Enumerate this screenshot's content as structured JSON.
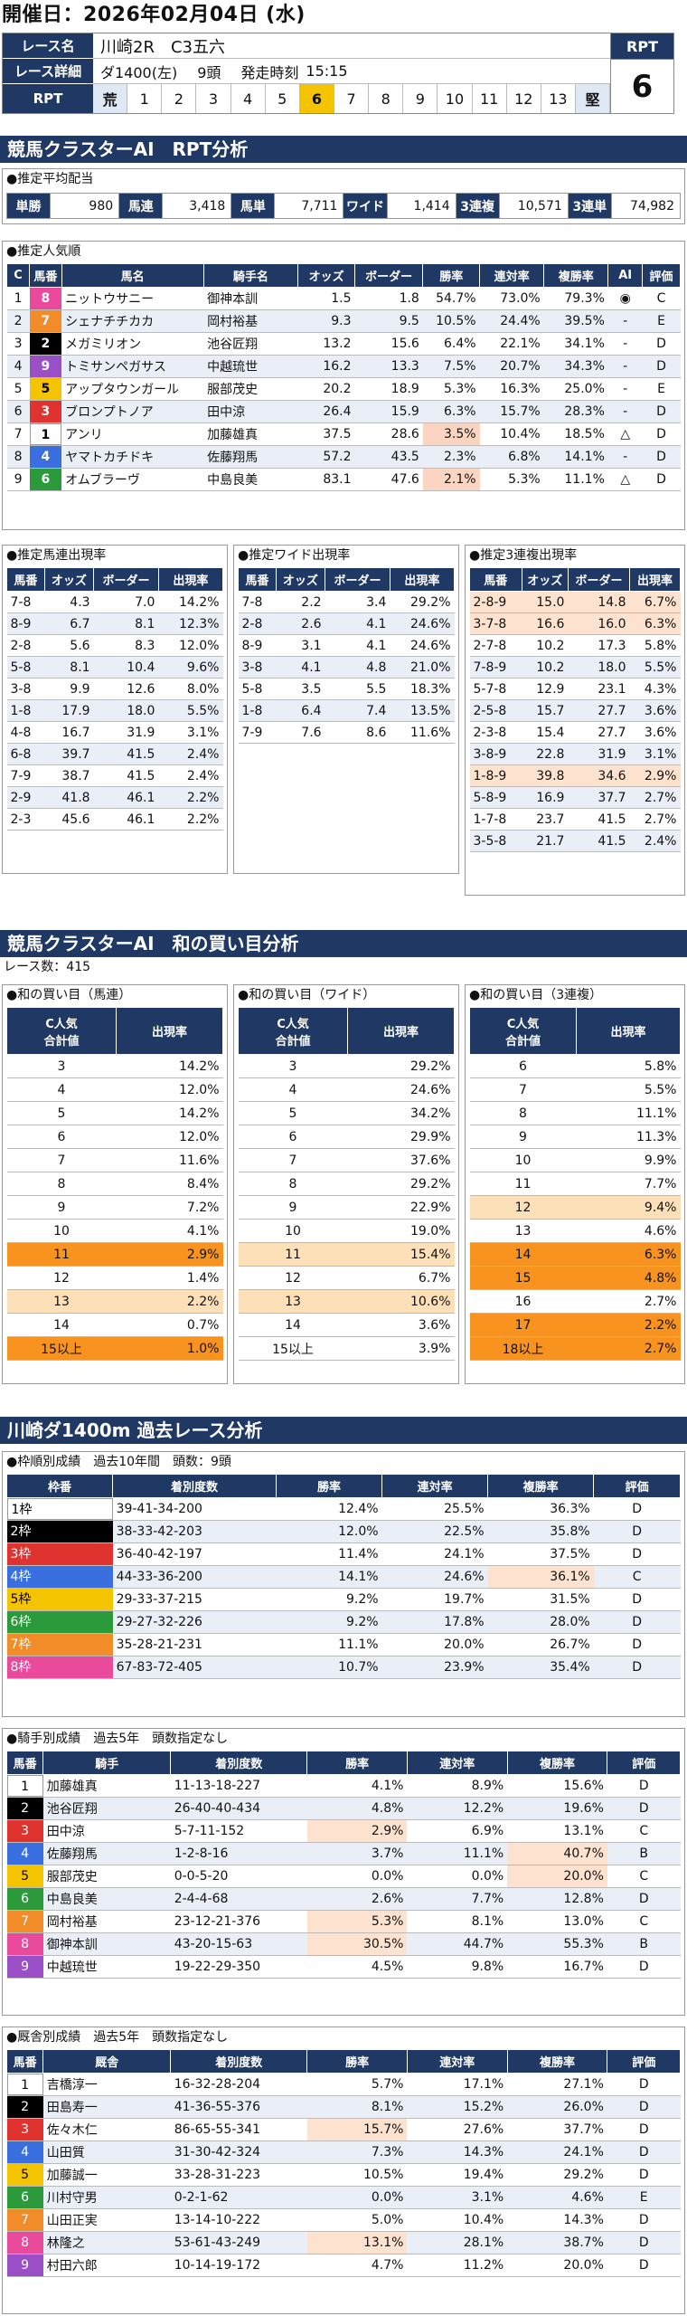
{
  "header": {
    "date_label": "開催日：",
    "date": "2026年02月04日 (水)"
  },
  "race": {
    "name_label": "レース名",
    "name": "川崎2R　C3五六",
    "detail_label": "レース詳細",
    "course": "ダ1400(左)",
    "heads": "9頭",
    "start_label": "発走時刻",
    "start": "15:15",
    "rpt_label": "RPT",
    "rpt_value": "6",
    "scale_start": "荒",
    "scale": [
      "1",
      "2",
      "3",
      "4",
      "5",
      "6",
      "7",
      "8",
      "9",
      "10",
      "11",
      "12",
      "13"
    ],
    "scale_end": "堅",
    "scale_selected": "6"
  },
  "s1": {
    "title": "競馬クラスターAI　RPT分析"
  },
  "payout": {
    "caption": "●推定平均配当",
    "items": [
      {
        "label": "単勝",
        "value": "980"
      },
      {
        "label": "馬連",
        "value": "3,418"
      },
      {
        "label": "馬単",
        "value": "7,711"
      },
      {
        "label": "ワイド",
        "value": "1,414"
      },
      {
        "label": "3連複",
        "value": "10,571"
      },
      {
        "label": "3連単",
        "value": "74,982"
      }
    ]
  },
  "pop": {
    "caption": "●推定人気順",
    "headers": [
      "C",
      "馬番",
      "馬名",
      "騎手名",
      "オッズ",
      "ボーダー",
      "勝率",
      "連対率",
      "複勝率",
      "AI",
      "評価"
    ],
    "rows": [
      [
        "1",
        "8",
        "ニットウサニー",
        "御神本訓",
        "1.5",
        "1.8",
        "54.7%",
        "73.0%",
        "79.3%",
        "◉",
        "C"
      ],
      [
        "2",
        "7",
        "シェナチチカカ",
        "岡村裕基",
        "9.3",
        "9.5",
        "10.5%",
        "24.4%",
        "39.5%",
        "-",
        "E"
      ],
      [
        "3",
        "2",
        "メガミリオン",
        "池谷匠翔",
        "13.2",
        "15.6",
        "6.4%",
        "22.1%",
        "34.1%",
        "-",
        "D"
      ],
      [
        "4",
        "9",
        "トミサンペガサス",
        "中越琉世",
        "16.2",
        "13.3",
        "7.5%",
        "20.7%",
        "34.3%",
        "-",
        "D"
      ],
      [
        "5",
        "5",
        "アップタウンガール",
        "服部茂史",
        "20.2",
        "18.9",
        "5.3%",
        "16.3%",
        "25.0%",
        "-",
        "E"
      ],
      [
        "6",
        "3",
        "ブロンプトノア",
        "田中涼",
        "26.4",
        "15.9",
        "6.3%",
        "15.7%",
        "28.3%",
        "-",
        "D"
      ],
      [
        "7",
        "1",
        "アンリ",
        "加藤雄真",
        "37.5",
        "28.6",
        "3.5%",
        "10.4%",
        "18.5%",
        "△",
        "D"
      ],
      [
        "8",
        "4",
        "ヤマトカチドキ",
        "佐藤翔馬",
        "57.2",
        "43.5",
        "2.3%",
        "6.8%",
        "14.1%",
        "-",
        "D"
      ],
      [
        "9",
        "6",
        "オムブラーヴ",
        "中島良美",
        "83.1",
        "47.6",
        "2.1%",
        "5.3%",
        "11.1%",
        "△",
        "D"
      ]
    ]
  },
  "umaren": {
    "caption": "●推定馬連出現率",
    "headers": [
      "馬番",
      "オッズ",
      "ボーダー",
      "出現率"
    ],
    "rows": [
      [
        "7-8",
        "4.3",
        "7.0",
        "14.2%"
      ],
      [
        "8-9",
        "6.7",
        "8.1",
        "12.3%"
      ],
      [
        "2-8",
        "5.6",
        "8.3",
        "12.0%"
      ],
      [
        "5-8",
        "8.1",
        "10.4",
        "9.6%"
      ],
      [
        "3-8",
        "9.9",
        "12.6",
        "8.0%"
      ],
      [
        "1-8",
        "17.9",
        "18.0",
        "5.5%"
      ],
      [
        "4-8",
        "16.7",
        "31.9",
        "3.1%"
      ],
      [
        "6-8",
        "39.7",
        "41.5",
        "2.4%"
      ],
      [
        "7-9",
        "38.7",
        "41.5",
        "2.4%"
      ],
      [
        "2-9",
        "41.8",
        "46.1",
        "2.2%"
      ],
      [
        "2-3",
        "45.6",
        "46.1",
        "2.2%"
      ]
    ]
  },
  "wide": {
    "caption": "●推定ワイド出現率",
    "headers": [
      "馬番",
      "オッズ",
      "ボーダー",
      "出現率"
    ],
    "rows": [
      [
        "7-8",
        "2.2",
        "3.4",
        "29.2%"
      ],
      [
        "2-8",
        "2.6",
        "4.1",
        "24.6%"
      ],
      [
        "8-9",
        "3.1",
        "4.1",
        "24.6%"
      ],
      [
        "3-8",
        "4.1",
        "4.8",
        "21.0%"
      ],
      [
        "5-8",
        "3.5",
        "5.5",
        "18.3%"
      ],
      [
        "1-8",
        "6.4",
        "7.4",
        "13.5%"
      ],
      [
        "7-9",
        "7.6",
        "8.6",
        "11.6%"
      ]
    ]
  },
  "sanpuku": {
    "caption": "●推定3連複出現率",
    "headers": [
      "馬番",
      "オッズ",
      "ボーダー",
      "出現率"
    ],
    "rows": [
      [
        "2-8-9",
        "15.0",
        "14.8",
        "6.7%"
      ],
      [
        "3-7-8",
        "16.6",
        "16.0",
        "6.3%"
      ],
      [
        "2-7-8",
        "10.2",
        "17.3",
        "5.8%"
      ],
      [
        "7-8-9",
        "10.2",
        "18.0",
        "5.5%"
      ],
      [
        "5-7-8",
        "12.9",
        "23.1",
        "4.3%"
      ],
      [
        "2-5-8",
        "15.7",
        "27.7",
        "3.6%"
      ],
      [
        "2-3-8",
        "15.4",
        "27.7",
        "3.6%"
      ],
      [
        "3-8-9",
        "22.8",
        "31.9",
        "3.1%"
      ],
      [
        "1-8-9",
        "39.8",
        "34.6",
        "2.9%"
      ],
      [
        "5-8-9",
        "16.9",
        "37.7",
        "2.7%"
      ],
      [
        "1-7-8",
        "23.7",
        "41.5",
        "2.7%"
      ],
      [
        "3-5-8",
        "21.7",
        "41.5",
        "2.4%"
      ]
    ]
  },
  "s2": {
    "title": "競馬クラスターAI　和の買い目分析",
    "races": "レース数：415"
  },
  "sum_umaren": {
    "caption": "●和の買い目（馬連）",
    "headers": [
      "C人気\n合計値",
      "出現率"
    ],
    "rows": [
      [
        "3",
        "14.2%"
      ],
      [
        "4",
        "12.0%"
      ],
      [
        "5",
        "14.2%"
      ],
      [
        "6",
        "12.0%"
      ],
      [
        "7",
        "11.6%"
      ],
      [
        "8",
        "8.4%"
      ],
      [
        "9",
        "7.2%"
      ],
      [
        "10",
        "4.1%"
      ],
      [
        "11",
        "2.9%"
      ],
      [
        "12",
        "1.4%"
      ],
      [
        "13",
        "2.2%"
      ],
      [
        "14",
        "0.7%"
      ],
      [
        "15以上",
        "1.0%"
      ]
    ]
  },
  "sum_wide": {
    "caption": "●和の買い目（ワイド）",
    "headers": [
      "C人気\n合計値",
      "出現率"
    ],
    "rows": [
      [
        "3",
        "29.2%"
      ],
      [
        "4",
        "24.6%"
      ],
      [
        "5",
        "34.2%"
      ],
      [
        "6",
        "29.9%"
      ],
      [
        "7",
        "37.6%"
      ],
      [
        "8",
        "29.2%"
      ],
      [
        "9",
        "22.9%"
      ],
      [
        "10",
        "19.0%"
      ],
      [
        "11",
        "15.4%"
      ],
      [
        "12",
        "6.7%"
      ],
      [
        "13",
        "10.6%"
      ],
      [
        "14",
        "3.6%"
      ],
      [
        "15以上",
        "3.9%"
      ]
    ]
  },
  "sum_sanpuku": {
    "caption": "●和の買い目（3連複）",
    "headers": [
      "C人気\n合計値",
      "出現率"
    ],
    "rows": [
      [
        "6",
        "5.8%"
      ],
      [
        "7",
        "5.5%"
      ],
      [
        "8",
        "11.1%"
      ],
      [
        "9",
        "11.3%"
      ],
      [
        "10",
        "9.9%"
      ],
      [
        "11",
        "7.7%"
      ],
      [
        "12",
        "9.4%"
      ],
      [
        "13",
        "4.6%"
      ],
      [
        "14",
        "6.3%"
      ],
      [
        "15",
        "4.8%"
      ],
      [
        "16",
        "2.7%"
      ],
      [
        "17",
        "2.2%"
      ],
      [
        "18以上",
        "2.7%"
      ]
    ]
  },
  "s3": {
    "title": "川崎ダ1400m 過去レース分析"
  },
  "waku": {
    "caption": "●枠順別成績　過去10年間　頭数：9頭",
    "headers": [
      "枠番",
      "着別度数",
      "勝率",
      "連対率",
      "複勝率",
      "評価"
    ],
    "rows": [
      [
        "1枠",
        "39-41-34-200",
        "12.4%",
        "25.5%",
        "36.3%",
        "D"
      ],
      [
        "2枠",
        "38-33-42-203",
        "12.0%",
        "22.5%",
        "35.8%",
        "D"
      ],
      [
        "3枠",
        "36-40-42-197",
        "11.4%",
        "24.1%",
        "37.5%",
        "D"
      ],
      [
        "4枠",
        "44-33-36-200",
        "14.1%",
        "24.6%",
        "36.1%",
        "C"
      ],
      [
        "5枠",
        "29-33-37-215",
        "9.2%",
        "19.7%",
        "31.5%",
        "D"
      ],
      [
        "6枠",
        "29-27-32-226",
        "9.2%",
        "17.8%",
        "28.0%",
        "D"
      ],
      [
        "7枠",
        "35-28-21-231",
        "11.1%",
        "20.0%",
        "26.7%",
        "D"
      ],
      [
        "8枠",
        "67-83-72-405",
        "10.7%",
        "23.9%",
        "35.4%",
        "D"
      ]
    ]
  },
  "jockey": {
    "caption": "●騎手別成績　過去5年　頭数指定なし",
    "headers": [
      "馬番",
      "騎手",
      "着別度数",
      "勝率",
      "連対率",
      "複勝率",
      "評価"
    ],
    "rows": [
      [
        "1",
        "加藤雄真",
        "11-13-18-227",
        "4.1%",
        "8.9%",
        "15.6%",
        "D"
      ],
      [
        "2",
        "池谷匠翔",
        "26-40-40-434",
        "4.8%",
        "12.2%",
        "19.6%",
        "D"
      ],
      [
        "3",
        "田中涼",
        "5-7-11-152",
        "2.9%",
        "6.9%",
        "13.1%",
        "C"
      ],
      [
        "4",
        "佐藤翔馬",
        "1-2-8-16",
        "3.7%",
        "11.1%",
        "40.7%",
        "B"
      ],
      [
        "5",
        "服部茂史",
        "0-0-5-20",
        "0.0%",
        "0.0%",
        "20.0%",
        "C"
      ],
      [
        "6",
        "中島良美",
        "2-4-4-68",
        "2.6%",
        "7.7%",
        "12.8%",
        "D"
      ],
      [
        "7",
        "岡村裕基",
        "23-12-21-376",
        "5.3%",
        "8.1%",
        "13.0%",
        "C"
      ],
      [
        "8",
        "御神本訓",
        "43-20-15-63",
        "30.5%",
        "44.7%",
        "55.3%",
        "B"
      ],
      [
        "9",
        "中越琉世",
        "19-22-29-350",
        "4.5%",
        "9.8%",
        "16.7%",
        "D"
      ]
    ]
  },
  "stable": {
    "caption": "●厩舎別成績　過去5年　頭数指定なし",
    "headers": [
      "馬番",
      "厩舎",
      "着別度数",
      "勝率",
      "連対率",
      "複勝率",
      "評価"
    ],
    "rows": [
      [
        "1",
        "吉橋淳一",
        "16-32-28-204",
        "5.7%",
        "17.1%",
        "27.1%",
        "D"
      ],
      [
        "2",
        "田島寿一",
        "41-36-55-376",
        "8.1%",
        "15.2%",
        "26.0%",
        "D"
      ],
      [
        "3",
        "佐々木仁",
        "86-65-55-341",
        "15.7%",
        "27.6%",
        "37.7%",
        "D"
      ],
      [
        "4",
        "山田質",
        "31-30-42-324",
        "7.3%",
        "14.3%",
        "24.1%",
        "D"
      ],
      [
        "5",
        "加藤誠一",
        "33-28-31-223",
        "10.5%",
        "19.4%",
        "29.2%",
        "D"
      ],
      [
        "6",
        "川村守男",
        "0-2-1-62",
        "0.0%",
        "3.1%",
        "4.6%",
        "E"
      ],
      [
        "7",
        "山田正実",
        "13-14-10-222",
        "5.0%",
        "10.4%",
        "14.3%",
        "D"
      ],
      [
        "8",
        "林隆之",
        "53-61-43-249",
        "13.1%",
        "28.1%",
        "38.7%",
        "D"
      ],
      [
        "9",
        "村田六郎",
        "10-14-19-172",
        "4.7%",
        "11.2%",
        "20.0%",
        "D"
      ]
    ]
  }
}
